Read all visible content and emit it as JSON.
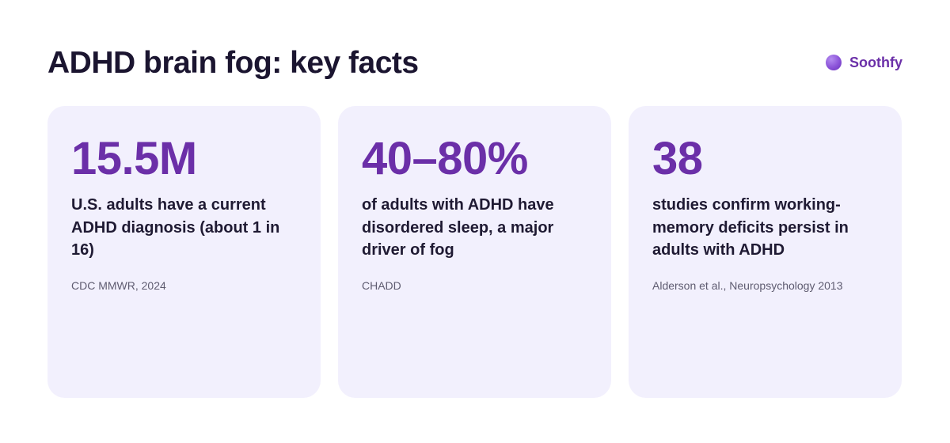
{
  "header": {
    "title": "ADHD brain fog: key facts",
    "brand": "Soothfy"
  },
  "cards": [
    {
      "value": "15.5M",
      "description": "U.S. adults have a current ADHD diagnosis (about 1 in 16)",
      "source": "CDC MMWR, 2024"
    },
    {
      "value": "40–80%",
      "description": "of adults with ADHD have disordered sleep, a major driver of fog",
      "source": "CHADD"
    },
    {
      "value": "38",
      "description": "studies confirm working-memory deficits persist in adults with ADHD",
      "source": "Alderson et al., Neuropsychology 2013"
    }
  ],
  "colors": {
    "accent": "#6b2fa8",
    "card_background": "#f2f0fd",
    "title": "#1b1530"
  },
  "icons": {
    "brand_logo": "purple-circle-icon"
  }
}
